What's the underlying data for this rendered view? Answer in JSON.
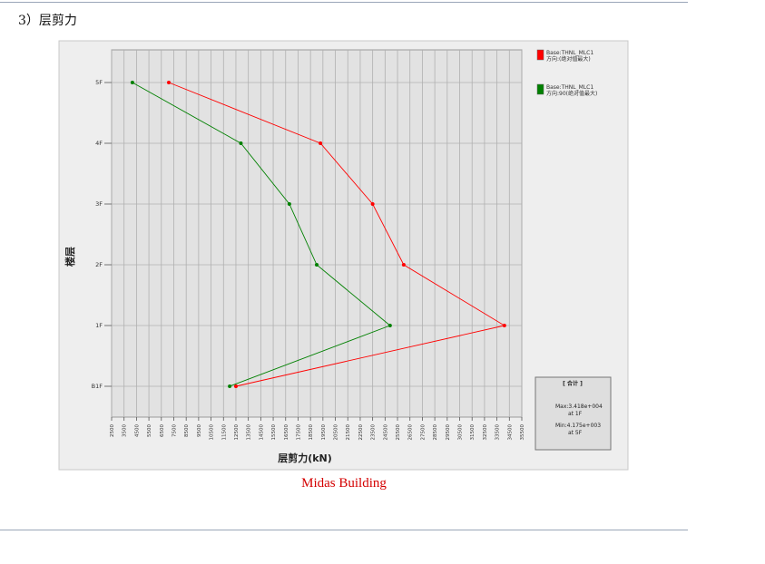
{
  "section": {
    "heading": "3）层剪力"
  },
  "caption": "Midas Building",
  "colors": {
    "series_x": "#ff0000",
    "series_y": "#008000",
    "grid": "#b0b0b0",
    "panel": "#e0e0e0"
  },
  "chart_data": {
    "type": "line",
    "orientation": "horizontal",
    "xlabel": "层剪力(kN)",
    "ylabel": "楼层",
    "xlim": [
      2500,
      35500
    ],
    "x_ticks": [
      2500,
      3500,
      4500,
      5500,
      6500,
      7500,
      8500,
      9500,
      10500,
      11500,
      12500,
      13500,
      14500,
      15500,
      16500,
      17500,
      18500,
      19500,
      20500,
      21500,
      22500,
      23500,
      24500,
      25500,
      26500,
      27500,
      28500,
      29500,
      30500,
      31500,
      32500,
      33500,
      34500,
      35500
    ],
    "x_tick_labels": [
      "2500",
      "3500",
      "4500",
      "5500",
      "6500",
      "7500",
      "8500",
      "9500",
      "10500",
      "11500",
      "12500",
      "13500",
      "14500",
      "15500",
      "16500",
      "17500",
      "18500",
      "19500",
      "20500",
      "21500",
      "22500",
      "23500",
      "24500",
      "25500",
      "26500",
      "27500",
      "28500",
      "29500",
      "30500",
      "31500",
      "32500",
      "33500",
      "34500",
      "35500"
    ],
    "categories": [
      "B1F",
      "1F",
      "2F",
      "3F",
      "4F",
      "5F"
    ],
    "grid": true,
    "legend_position": "top-right",
    "series": [
      {
        "name": "Base:THNL_MLC1",
        "name_line2": "方向:(绝对值最大)",
        "color": "#ff0000",
        "values": [
          12500,
          34100,
          26000,
          23500,
          19300,
          7100
        ]
      },
      {
        "name": "Base:THNL_MLC1",
        "name_line2": "方向:90(绝对值最大)",
        "color": "#008000",
        "values": [
          12000,
          24900,
          19000,
          16800,
          12900,
          4170
        ]
      }
    ],
    "summary_box": {
      "title": "[ 合计 ]",
      "max_text": "Max:3.418e+004",
      "max_at": "at 1F",
      "min_text": "Min:4.175e+003",
      "min_at": "at 5F"
    }
  }
}
